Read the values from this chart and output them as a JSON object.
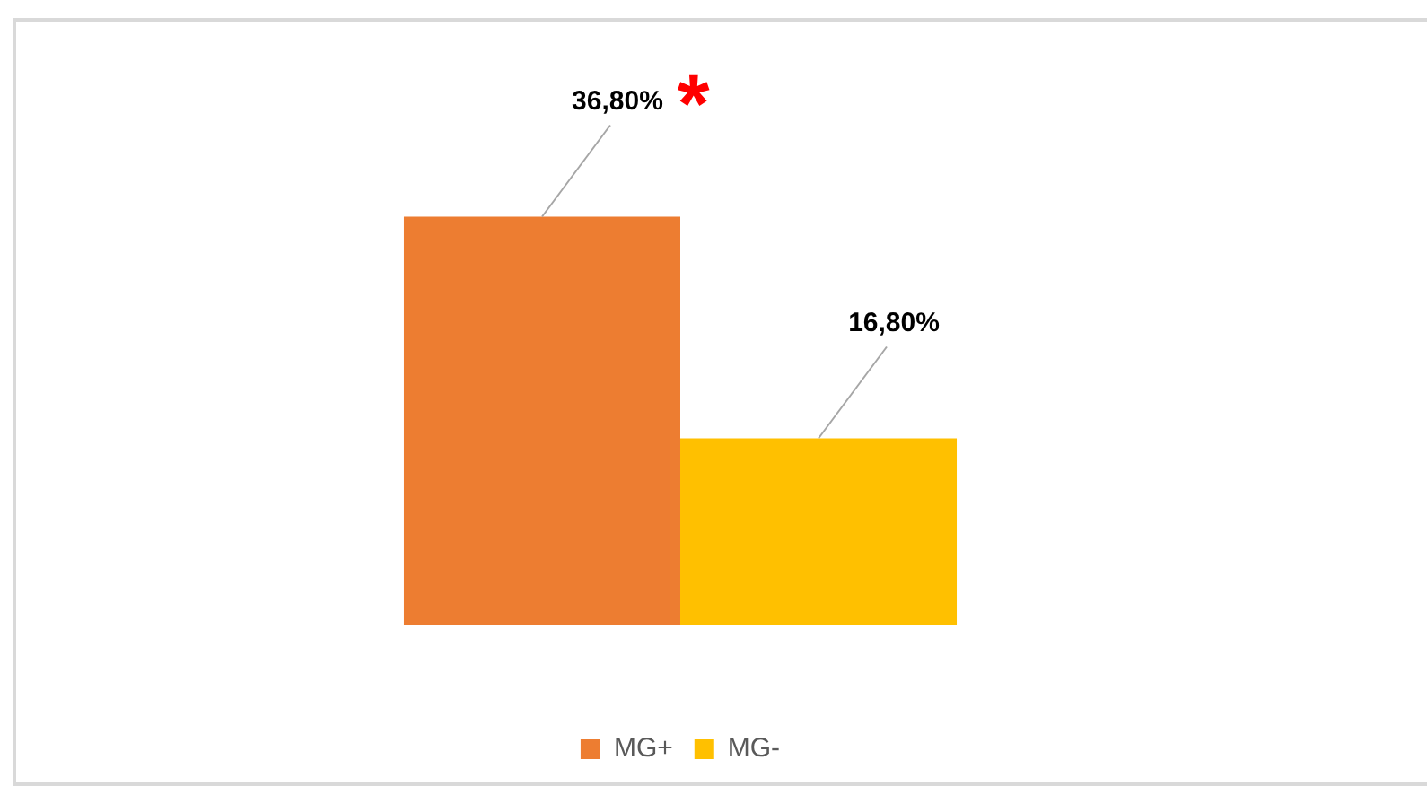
{
  "chart_data": {
    "type": "bar",
    "categories": [
      null
    ],
    "series": [
      {
        "name": "MG+",
        "color": "#ed7d31",
        "values": [
          36.8
        ],
        "value_labels": [
          "36,80%"
        ]
      },
      {
        "name": "MG-",
        "color": "#ffc000",
        "values": [
          16.8
        ],
        "value_labels": [
          "16,80%"
        ]
      }
    ],
    "annotations": [
      "*"
    ],
    "legend": "bottom"
  }
}
